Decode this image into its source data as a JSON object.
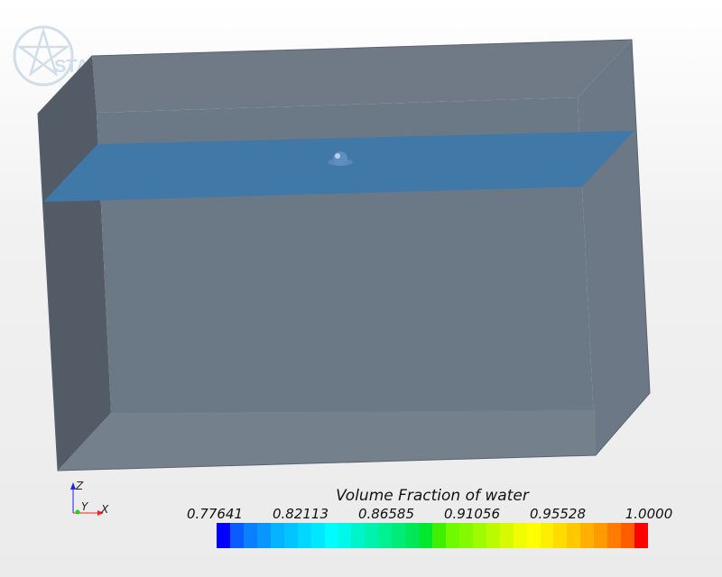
{
  "logo": {
    "text": "STAR"
  },
  "triad": {
    "z_label": "Z",
    "y_label": "Y",
    "x_label": "X",
    "colors": {
      "x": "#ff2020",
      "y": "#20d020",
      "z": "#2020ff"
    }
  },
  "scalar_bar": {
    "title": "Volume Fraction of water",
    "ticks": [
      "0.77641",
      "0.82113",
      "0.86585",
      "0.91056",
      "0.95528",
      "1.0000"
    ],
    "min": 0.77641,
    "max": 1.0,
    "colors": [
      "#0000ff",
      "#0a5cff",
      "#0a80ff",
      "#0896ff",
      "#05b4ff",
      "#03c4ff",
      "#00d8ff",
      "#00e8ff",
      "#00fcff",
      "#00f8e8",
      "#00f4cc",
      "#00f2b0",
      "#00f094",
      "#00ec78",
      "#00e85a",
      "#00e830",
      "#40f000",
      "#70fa00",
      "#84fa00",
      "#a0fa00",
      "#bcfa00",
      "#d8fa00",
      "#f0fc00",
      "#ffff00",
      "#ffee00",
      "#ffdc00",
      "#ffc800",
      "#ffb000",
      "#ff9a00",
      "#ff7c00",
      "#ff5c00",
      "#ff0000"
    ]
  },
  "scene": {
    "box_color": "#6b7886",
    "water_plane_color": "#4078a8"
  }
}
